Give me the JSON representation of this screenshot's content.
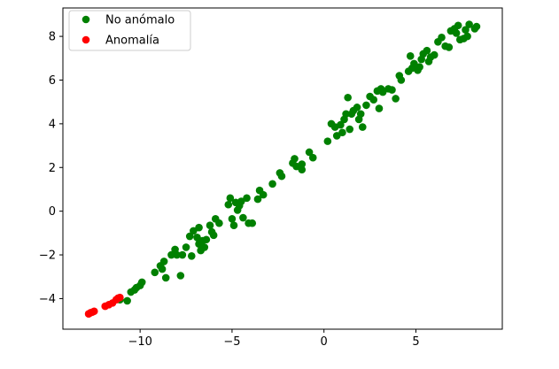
{
  "chart_data": {
    "type": "scatter",
    "title": "",
    "xlabel": "",
    "ylabel": "",
    "xlim": [
      -14.2,
      9.7
    ],
    "ylim": [
      -5.4,
      9.3
    ],
    "xticks": [
      -10,
      -5,
      0,
      5
    ],
    "yticks": [
      -4,
      -2,
      0,
      2,
      4,
      6,
      8
    ],
    "xtick_labels": [
      "−10",
      "−5",
      "0",
      "5"
    ],
    "ytick_labels": [
      "−4",
      "−2",
      "0",
      "2",
      "4",
      "6",
      "8"
    ],
    "grid": false,
    "legend_position": "upper-left",
    "series": [
      {
        "name": "No anómalo",
        "color": "#008000",
        "points": [
          [
            -11.1,
            -4.05
          ],
          [
            -10.7,
            -4.1
          ],
          [
            -10.5,
            -3.7
          ],
          [
            -10.3,
            -3.6
          ],
          [
            -10.2,
            -3.5
          ],
          [
            -10.0,
            -3.4
          ],
          [
            -9.9,
            -3.25
          ],
          [
            -9.2,
            -2.8
          ],
          [
            -8.9,
            -2.5
          ],
          [
            -8.8,
            -2.65
          ],
          [
            -8.7,
            -2.3
          ],
          [
            -8.6,
            -3.05
          ],
          [
            -8.3,
            -2.0
          ],
          [
            -8.1,
            -1.75
          ],
          [
            -8.0,
            -2.0
          ],
          [
            -7.8,
            -2.95
          ],
          [
            -7.7,
            -2.0
          ],
          [
            -7.5,
            -1.65
          ],
          [
            -7.3,
            -1.15
          ],
          [
            -7.2,
            -2.05
          ],
          [
            -7.1,
            -0.9
          ],
          [
            -6.9,
            -1.2
          ],
          [
            -6.8,
            -1.5
          ],
          [
            -6.8,
            -0.75
          ],
          [
            -6.7,
            -1.8
          ],
          [
            -6.6,
            -1.35
          ],
          [
            -6.5,
            -1.65
          ],
          [
            -6.4,
            -1.3
          ],
          [
            -6.2,
            -0.65
          ],
          [
            -6.1,
            -0.95
          ],
          [
            -6.0,
            -1.1
          ],
          [
            -5.9,
            -0.35
          ],
          [
            -5.7,
            -0.55
          ],
          [
            -5.2,
            0.3
          ],
          [
            -5.1,
            0.6
          ],
          [
            -5.0,
            -0.35
          ],
          [
            -4.9,
            -0.65
          ],
          [
            -4.8,
            0.4
          ],
          [
            -4.7,
            0.05
          ],
          [
            -4.6,
            0.25
          ],
          [
            -4.5,
            0.45
          ],
          [
            -4.4,
            -0.3
          ],
          [
            -4.2,
            0.6
          ],
          [
            -4.1,
            -0.55
          ],
          [
            -3.9,
            -0.55
          ],
          [
            -3.6,
            0.55
          ],
          [
            -3.5,
            0.95
          ],
          [
            -3.3,
            0.75
          ],
          [
            -2.8,
            1.25
          ],
          [
            -2.4,
            1.75
          ],
          [
            -2.3,
            1.6
          ],
          [
            -1.7,
            2.2
          ],
          [
            -1.6,
            2.4
          ],
          [
            -1.5,
            2.05
          ],
          [
            -1.2,
            2.15
          ],
          [
            -1.2,
            1.9
          ],
          [
            -0.8,
            2.7
          ],
          [
            -0.6,
            2.45
          ],
          [
            0.2,
            3.2
          ],
          [
            0.4,
            4.0
          ],
          [
            0.6,
            3.85
          ],
          [
            0.7,
            3.45
          ],
          [
            0.9,
            3.95
          ],
          [
            1.0,
            3.6
          ],
          [
            1.1,
            4.2
          ],
          [
            1.2,
            4.45
          ],
          [
            1.3,
            5.2
          ],
          [
            1.4,
            3.75
          ],
          [
            1.5,
            4.45
          ],
          [
            1.6,
            4.6
          ],
          [
            1.8,
            4.75
          ],
          [
            1.9,
            4.2
          ],
          [
            2.0,
            4.45
          ],
          [
            2.1,
            3.85
          ],
          [
            2.3,
            4.85
          ],
          [
            2.5,
            5.25
          ],
          [
            2.7,
            5.1
          ],
          [
            2.9,
            5.5
          ],
          [
            3.0,
            4.7
          ],
          [
            3.1,
            5.6
          ],
          [
            3.2,
            5.45
          ],
          [
            3.5,
            5.6
          ],
          [
            3.7,
            5.55
          ],
          [
            3.9,
            5.15
          ],
          [
            4.1,
            6.2
          ],
          [
            4.2,
            6.0
          ],
          [
            4.6,
            6.4
          ],
          [
            4.7,
            7.1
          ],
          [
            4.8,
            6.55
          ],
          [
            4.9,
            6.75
          ],
          [
            5.1,
            6.45
          ],
          [
            5.2,
            6.6
          ],
          [
            5.3,
            6.95
          ],
          [
            5.4,
            7.2
          ],
          [
            5.6,
            7.35
          ],
          [
            5.7,
            6.85
          ],
          [
            5.8,
            7.05
          ],
          [
            6.0,
            7.15
          ],
          [
            6.2,
            7.75
          ],
          [
            6.4,
            7.95
          ],
          [
            6.6,
            7.55
          ],
          [
            6.8,
            7.5
          ],
          [
            6.9,
            8.25
          ],
          [
            7.1,
            8.35
          ],
          [
            7.2,
            8.15
          ],
          [
            7.3,
            8.5
          ],
          [
            7.4,
            7.85
          ],
          [
            7.6,
            7.9
          ],
          [
            7.7,
            8.3
          ],
          [
            7.8,
            8.0
          ],
          [
            7.9,
            8.55
          ],
          [
            8.2,
            8.35
          ],
          [
            8.3,
            8.45
          ]
        ]
      },
      {
        "name": "Anomalía",
        "color": "#ff0000",
        "points": [
          [
            -12.8,
            -4.7
          ],
          [
            -12.7,
            -4.65
          ],
          [
            -12.6,
            -4.62
          ],
          [
            -12.5,
            -4.58
          ],
          [
            -11.9,
            -4.35
          ],
          [
            -11.7,
            -4.28
          ],
          [
            -11.5,
            -4.2
          ],
          [
            -11.3,
            -4.05
          ],
          [
            -11.2,
            -3.98
          ],
          [
            -11.1,
            -3.95
          ]
        ]
      }
    ]
  }
}
